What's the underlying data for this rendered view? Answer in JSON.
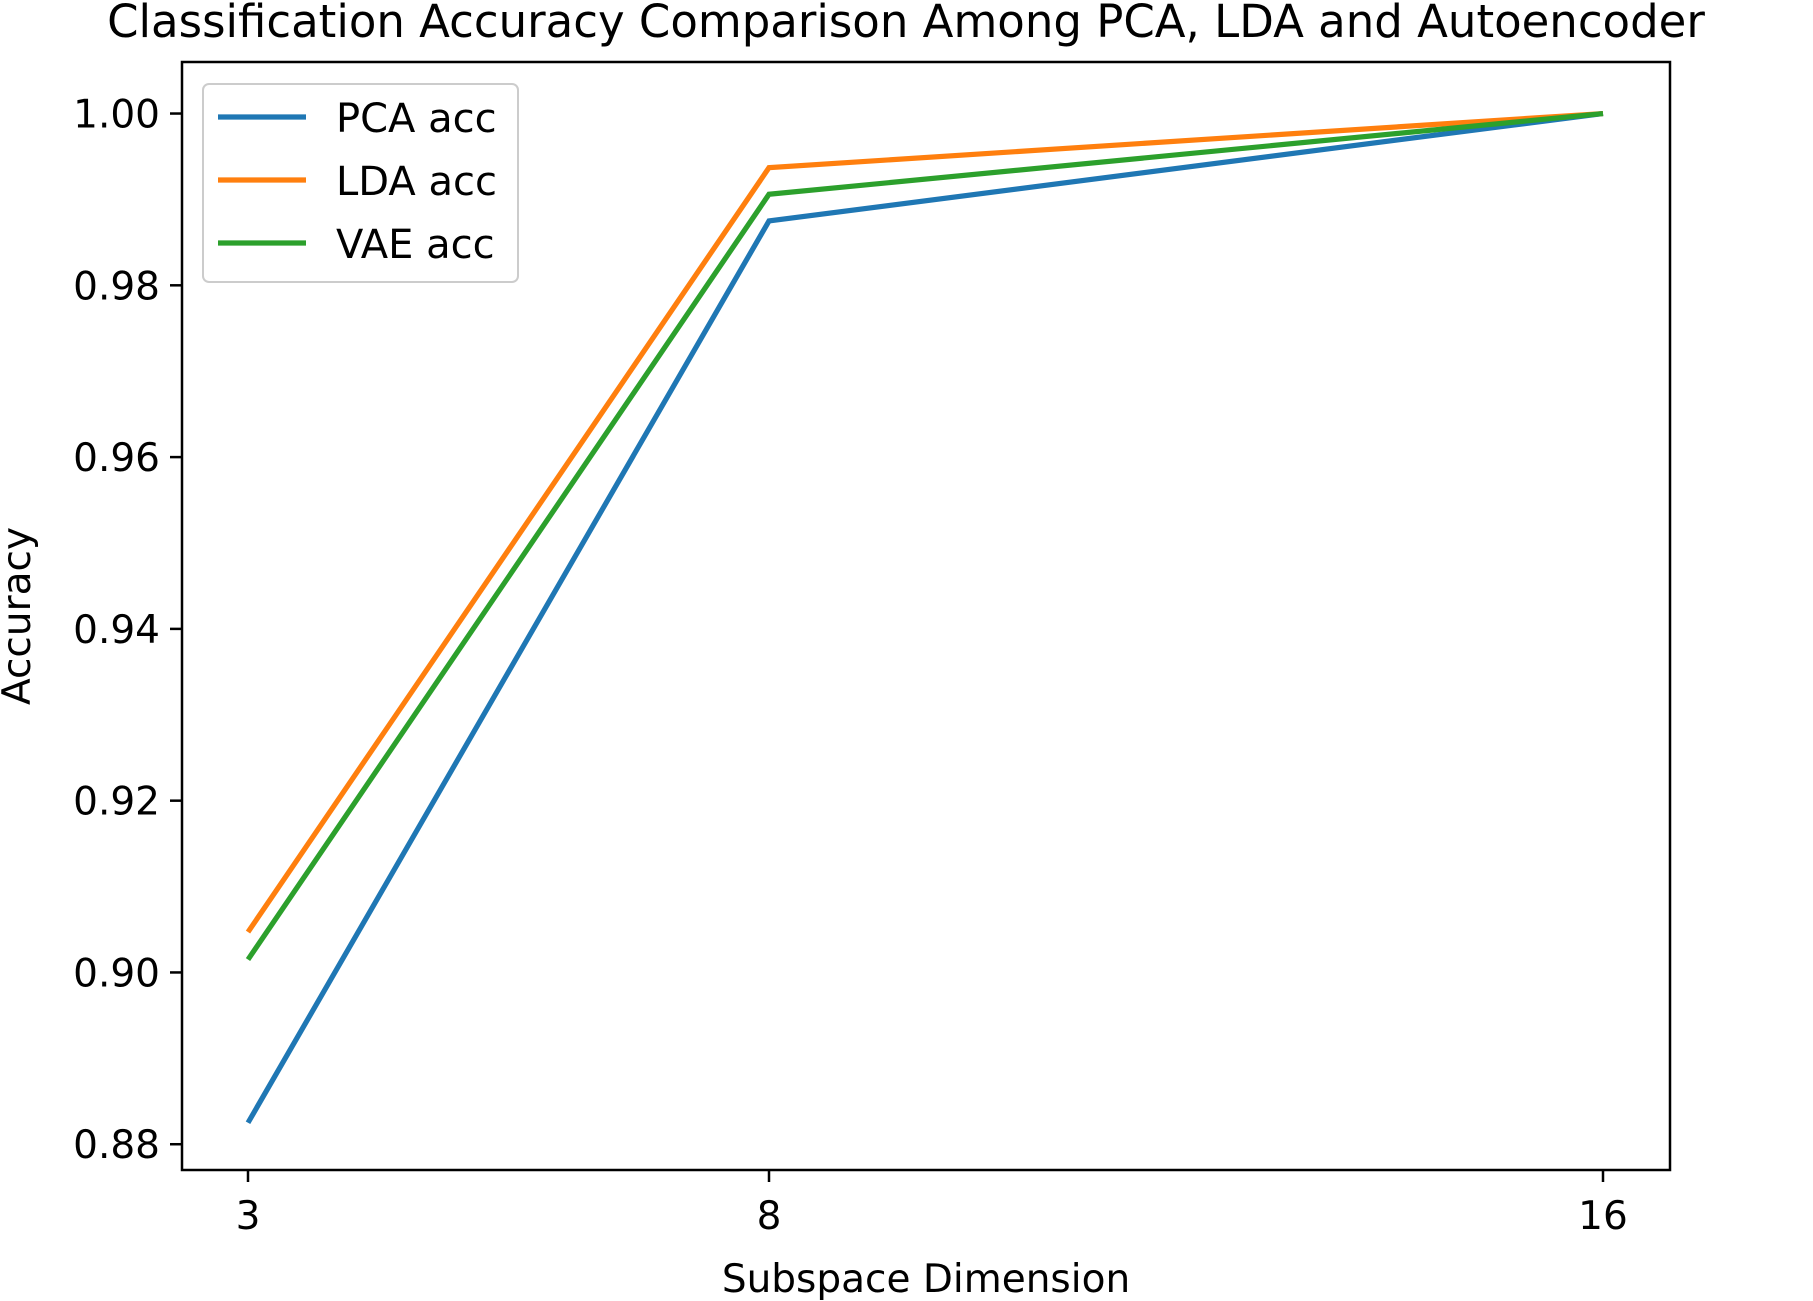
{
  "chart_data": {
    "type": "line",
    "title": "Classification Accuracy Comparison Among PCA, LDA and Autoencoder",
    "xlabel": "Subspace Dimension",
    "ylabel": "Accuracy",
    "x": [
      3,
      8,
      16
    ],
    "x_tick_labels": [
      "3",
      "8",
      "16"
    ],
    "y_ticks": [
      0.88,
      0.9,
      0.92,
      0.94,
      0.96,
      0.98,
      1.0
    ],
    "y_tick_labels": [
      "0.88",
      "0.90",
      "0.92",
      "0.94",
      "0.96",
      "0.98",
      "1.00"
    ],
    "ylim": [
      0.877,
      1.006
    ],
    "grid": false,
    "legend_position": "upper-left",
    "series": [
      {
        "name": "PCA acc",
        "color": "#1f77b4",
        "values": [
          0.8825,
          0.9875,
          1.0
        ]
      },
      {
        "name": "LDA acc",
        "color": "#ff7f0e",
        "values": [
          0.9047,
          0.9937,
          1.0
        ]
      },
      {
        "name": "VAE acc",
        "color": "#2ca02c",
        "values": [
          0.9015,
          0.9906,
          1.0
        ]
      }
    ]
  }
}
